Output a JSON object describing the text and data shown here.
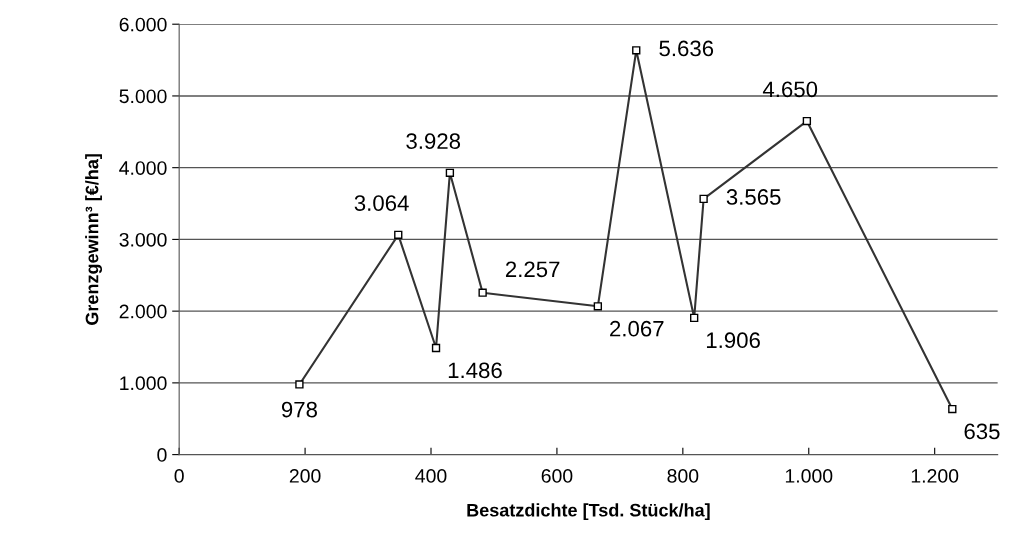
{
  "chart_data": {
    "type": "line",
    "xlabel": "Besatzdichte [Tsd. Stück/ha]",
    "ylabel": "Grenzgewinn³ [€/ha]",
    "x": [
      191,
      348,
      408,
      430,
      482,
      665,
      726,
      818,
      833,
      997,
      1228
    ],
    "series": [
      {
        "color": "#333333",
        "values": [
          978,
          3064,
          1486,
          3928,
          2257,
          2067,
          5636,
          1906,
          3565,
          4650,
          635
        ]
      }
    ],
    "value_labels": [
      "978",
      "3.064",
      "1.486",
      "3.928",
      "2.257",
      "2.067",
      "5.636",
      "1.906",
      "3.565",
      "4.650",
      "635"
    ],
    "xlim": [
      0,
      1300
    ],
    "xticks": [
      0,
      200,
      400,
      600,
      800,
      {
        "value": 1000,
        "label": "1.000"
      },
      {
        "value": 1200,
        "label": "1.200"
      }
    ],
    "ylim": [
      0,
      6000
    ],
    "yticks": [
      0,
      {
        "value": 1000,
        "label": "1.000"
      },
      {
        "value": 2000,
        "label": "2.000"
      },
      {
        "value": 3000,
        "label": "3.000"
      },
      {
        "value": 4000,
        "label": "4.000"
      },
      {
        "value": 5000,
        "label": "5.000"
      },
      {
        "value": 6000,
        "label": "6.000"
      }
    ],
    "grid": "y",
    "marker": "square",
    "line_style": "solid",
    "legend": false
  }
}
